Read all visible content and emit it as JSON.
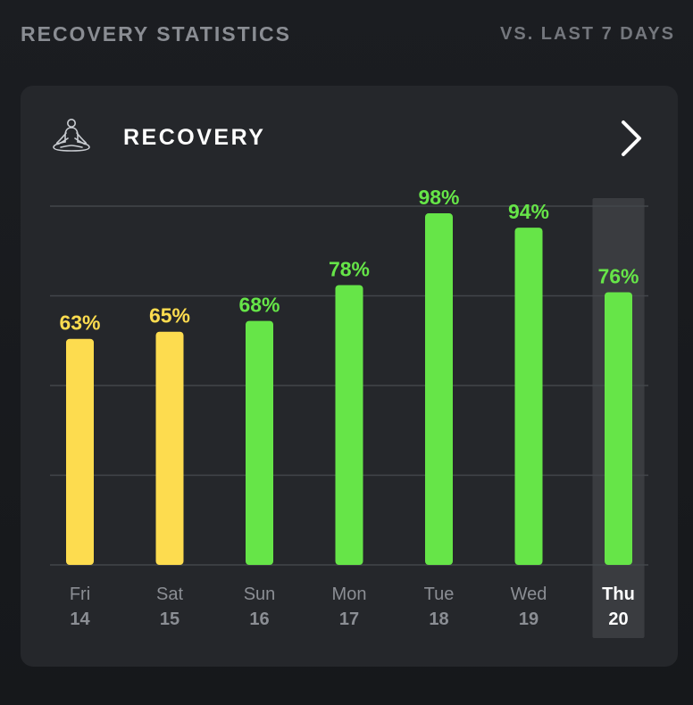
{
  "header": {
    "title": "RECOVERY STATISTICS",
    "compare_label": "VS. LAST 7 DAYS"
  },
  "card": {
    "title": "RECOVERY",
    "icon": "meditation-icon",
    "action_icon": "chevron-right-icon"
  },
  "colors": {
    "yellow": "#fddc4f",
    "green": "#66e548",
    "highlight_bg": "#3a3c40",
    "grid": "#43464b"
  },
  "chart_data": {
    "type": "bar",
    "categories": [
      "Fri 14",
      "Sat 15",
      "Sun 16",
      "Mon 17",
      "Tue 18",
      "Wed 19",
      "Thu 20"
    ],
    "days": [
      {
        "day": "Fri",
        "date": "14",
        "value": 63,
        "label": "63%",
        "zone": "yellow",
        "selected": false
      },
      {
        "day": "Sat",
        "date": "15",
        "value": 65,
        "label": "65%",
        "zone": "yellow",
        "selected": false
      },
      {
        "day": "Sun",
        "date": "16",
        "value": 68,
        "label": "68%",
        "zone": "green",
        "selected": false
      },
      {
        "day": "Mon",
        "date": "17",
        "value": 78,
        "label": "78%",
        "zone": "green",
        "selected": false
      },
      {
        "day": "Tue",
        "date": "18",
        "value": 98,
        "label": "98%",
        "zone": "green",
        "selected": false
      },
      {
        "day": "Wed",
        "date": "19",
        "value": 94,
        "label": "94%",
        "zone": "green",
        "selected": false
      },
      {
        "day": "Thu",
        "date": "20",
        "value": 76,
        "label": "76%",
        "zone": "green",
        "selected": true
      }
    ],
    "ylim": [
      0,
      100
    ],
    "grid": true
  }
}
